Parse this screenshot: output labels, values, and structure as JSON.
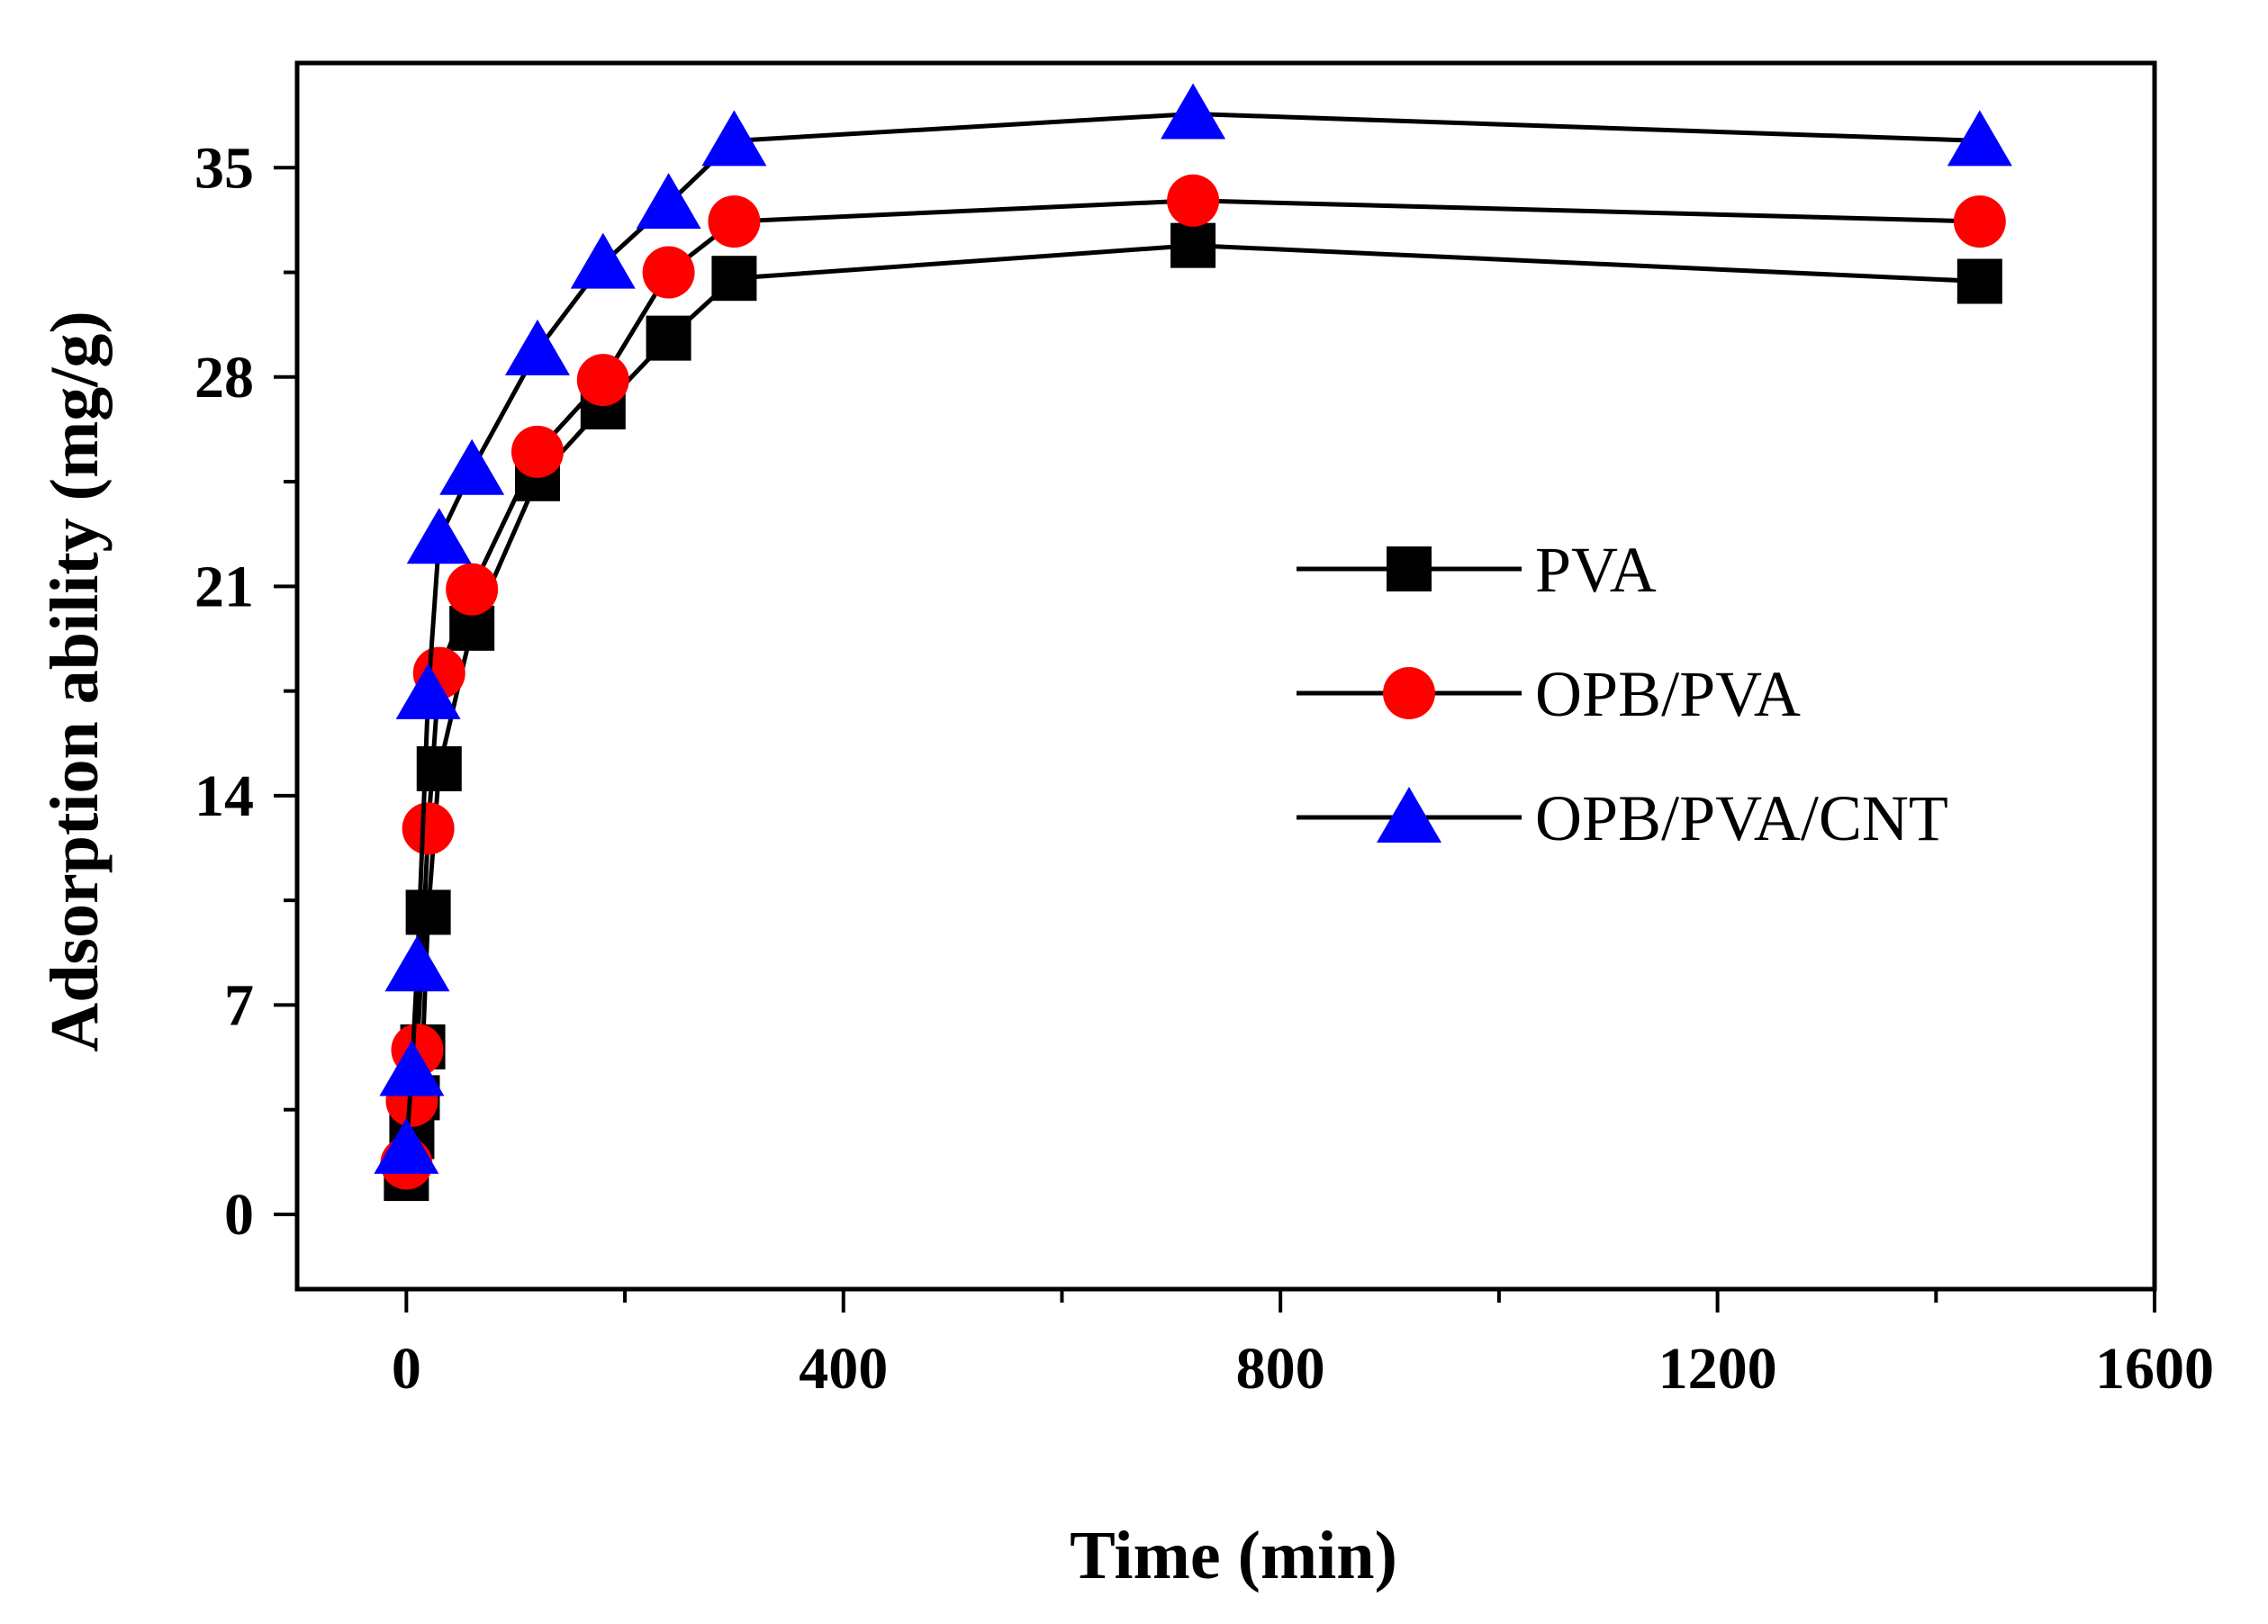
{
  "chart_data": {
    "type": "line",
    "title": "",
    "xlabel": "Time (min)",
    "ylabel": "Adsorption ability (mg/g)",
    "xlim": [
      -100,
      1600
    ],
    "ylim": [
      -2.5,
      38.5
    ],
    "xticks": [
      0,
      400,
      800,
      1200,
      1600
    ],
    "xtick_labels": [
      "0",
      "400",
      "800",
      "1200",
      "1600"
    ],
    "yticks": [
      0,
      7,
      14,
      21,
      28,
      35
    ],
    "ytick_labels": [
      "0",
      "7",
      "14",
      "21",
      "28",
      "35"
    ],
    "grid": false,
    "legend_position": "center-right",
    "series": [
      {
        "name": "PVA",
        "marker": "square",
        "color": "#000000",
        "x": [
          0,
          5,
          10,
          15,
          20,
          30,
          60,
          120,
          180,
          240,
          300,
          720,
          1440
        ],
        "y": [
          1.2,
          2.6,
          3.9,
          5.6,
          10.1,
          14.9,
          19.6,
          24.6,
          27.0,
          29.3,
          31.3,
          32.4,
          31.2
        ]
      },
      {
        "name": "OPB/PVA",
        "marker": "circle",
        "color": "#ff0000",
        "x": [
          0,
          5,
          10,
          20,
          30,
          60,
          120,
          180,
          240,
          300,
          720,
          1440
        ],
        "y": [
          1.7,
          3.8,
          5.5,
          12.9,
          18.1,
          20.9,
          25.5,
          27.9,
          31.5,
          33.2,
          33.9,
          33.2
        ]
      },
      {
        "name": "OPB/PVA/CNT",
        "marker": "triangle",
        "color": "#0000ff",
        "x": [
          0,
          5,
          10,
          20,
          30,
          60,
          120,
          180,
          240,
          300,
          720,
          1440
        ],
        "y": [
          2.2,
          4.8,
          8.3,
          17.4,
          22.6,
          24.9,
          28.9,
          31.8,
          33.8,
          35.9,
          36.8,
          35.9
        ]
      }
    ]
  }
}
